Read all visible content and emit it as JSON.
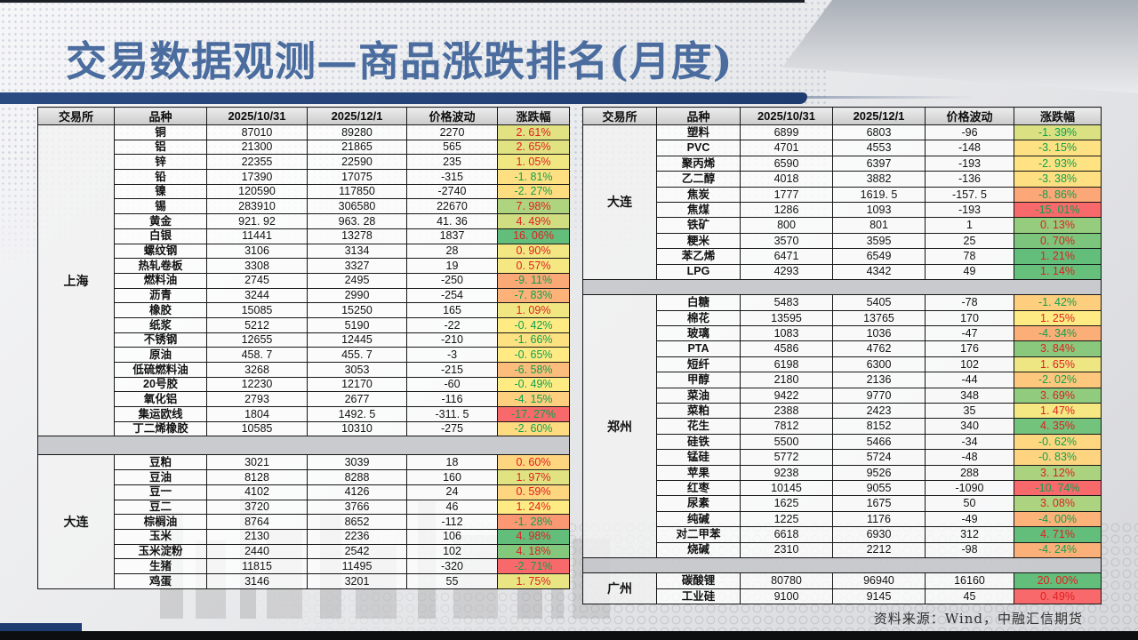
{
  "slide": {
    "title": "交易数据观测—商品涨跌排名(月度)",
    "source_note": "资料来源：Wind，中融汇信期货",
    "colors": {
      "title_blue": "#4a6c9e",
      "bar_navy": "#1f3c70",
      "up_red": "#e01f1f",
      "down_green": "#0ca14e",
      "scale_min_red": "#F8696B",
      "scale_mid_yellow": "#FFEB84",
      "scale_max_green": "#63BE7B"
    }
  },
  "row_fields": [
    "variety",
    "price_2025_10_31",
    "price_2025_12_1",
    "price_change",
    "pct_change",
    "pct_bg_color",
    "direction"
  ],
  "tables": [
    {
      "id": "left",
      "headers": [
        "交易所",
        "品种",
        "2025/10/31",
        "2025/12/1",
        "价格波动",
        "涨跌幅"
      ],
      "sections": [
        {
          "exchange": "上海",
          "rows": [
            [
              "铜",
              "87010",
              "89280",
              "2270",
              "2. 61%",
              "#E2E282",
              "up"
            ],
            [
              "铝",
              "21300",
              "21865",
              "565",
              "2. 65%",
              "#E1E282",
              "up"
            ],
            [
              "锌",
              "22355",
              "22590",
              "235",
              "1. 05%",
              "#F0E783",
              "up"
            ],
            [
              "铅",
              "17390",
              "17075",
              "-315",
              "-1. 81%",
              "#FEE082",
              "down"
            ],
            [
              "镍",
              "120590",
              "117850",
              "-2740",
              "-2. 27%",
              "#FEDD81",
              "down"
            ],
            [
              "锡",
              "283910",
              "306580",
              "22670",
              "7. 98%",
              "#AFD47F",
              "up"
            ],
            [
              "黄金",
              "921. 92",
              "963. 28",
              "41. 36",
              "4. 49%",
              "#D0DD81",
              "up"
            ],
            [
              "白银",
              "11441",
              "13278",
              "1837",
              "16. 06%",
              "#63BE7B",
              "up"
            ],
            [
              "螺纹钢",
              "3106",
              "3134",
              "28",
              "0. 90%",
              "#F2E783",
              "up"
            ],
            [
              "热轧卷板",
              "3308",
              "3327",
              "19",
              "0. 57%",
              "#F5E883",
              "up"
            ],
            [
              "燃料油",
              "2745",
              "2495",
              "-250",
              "-9. 11%",
              "#FBA877",
              "down"
            ],
            [
              "沥青",
              "3244",
              "2990",
              "-254",
              "-7. 83%",
              "#FCB279",
              "down"
            ],
            [
              "橡胶",
              "15085",
              "15250",
              "165",
              "1. 09%",
              "#F0E783",
              "up"
            ],
            [
              "纸浆",
              "5212",
              "5190",
              "-22",
              "-0. 42%",
              "#FFEB84",
              "down"
            ],
            [
              "不锈钢",
              "12655",
              "12445",
              "-210",
              "-1. 66%",
              "#FEE282",
              "down"
            ],
            [
              "原油",
              "458. 7",
              "455. 7",
              "-3",
              "-0. 65%",
              "#FFEA84",
              "down"
            ],
            [
              "低硫燃料油",
              "3268",
              "3053",
              "-215",
              "-6. 58%",
              "#FCBC7B",
              "down"
            ],
            [
              "20号胶",
              "12230",
              "12170",
              "-60",
              "-0. 49%",
              "#FFEB84",
              "down"
            ],
            [
              "氧化铝",
              "2793",
              "2677",
              "-116",
              "-4. 15%",
              "#FDCF7F",
              "down"
            ],
            [
              "集运欧线",
              "1804",
              "1492. 5",
              "-311. 5",
              "-17. 27%",
              "#F8696B",
              "down"
            ],
            [
              "丁二烯橡胶",
              "10585",
              "10310",
              "-275",
              "-2. 60%",
              "#FEDB81",
              "down"
            ]
          ]
        },
        {
          "exchange": "大连",
          "rows": [
            [
              "豆粕",
              "3021",
              "3039",
              "18",
              "0. 60%",
              "#FED680",
              "up"
            ],
            [
              "豆油",
              "8128",
              "8288",
              "160",
              "1. 97%",
              "#E1E282",
              "up"
            ],
            [
              "豆一",
              "4102",
              "4126",
              "24",
              "0. 59%",
              "#FED680",
              "up"
            ],
            [
              "豆二",
              "3720",
              "3766",
              "46",
              "1. 24%",
              "#FFEB84",
              "up"
            ],
            [
              "棕榈油",
              "8764",
              "8652",
              "-112",
              "-1. 28%",
              "#FB9874",
              "down"
            ],
            [
              "玉米",
              "2130",
              "2236",
              "106",
              "4. 98%",
              "#63BE7B",
              "up"
            ],
            [
              "玉米淀粉",
              "2440",
              "2542",
              "102",
              "4. 18%",
              "#84C87D",
              "up"
            ],
            [
              "生猪",
              "11815",
              "11495",
              "-320",
              "-2. 71%",
              "#F8696B",
              "down"
            ],
            [
              "鸡蛋",
              "3146",
              "3201",
              "55",
              "1. 75%",
              "#EAE583",
              "up"
            ]
          ]
        }
      ]
    },
    {
      "id": "right",
      "headers": [
        "交易所",
        "品种",
        "2025/10/31",
        "2025/12/1",
        "价格波动",
        "涨跌幅"
      ],
      "sections": [
        {
          "exchange": "大连",
          "rows": [
            [
              "塑料",
              "6899",
              "6803",
              "-96",
              "-1. 39%",
              "#DBE182",
              "down"
            ],
            [
              "PVC",
              "4701",
              "4553",
              "-148",
              "-3. 15%",
              "#FEE182",
              "down"
            ],
            [
              "聚丙烯",
              "6590",
              "6397",
              "-193",
              "-2. 93%",
              "#FFE383",
              "down"
            ],
            [
              "乙二醇",
              "4018",
              "3882",
              "-136",
              "-3. 38%",
              "#FEDF82",
              "down"
            ],
            [
              "焦炭",
              "1777",
              "1619. 5",
              "-157. 5",
              "-8. 86%",
              "#FBA777",
              "down"
            ],
            [
              "焦煤",
              "1286",
              "1093",
              "-193",
              "-15. 01%",
              "#F8696B",
              "down"
            ],
            [
              "铁矿",
              "800",
              "801",
              "1",
              "0. 13%",
              "#95CC7E",
              "up"
            ],
            [
              "粳米",
              "3570",
              "3595",
              "25",
              "0. 70%",
              "#7BC57C",
              "up"
            ],
            [
              "苯乙烯",
              "6471",
              "6549",
              "78",
              "1. 21%",
              "#63BE7B",
              "up"
            ],
            [
              "LPG",
              "4293",
              "4342",
              "49",
              "1. 14%",
              "#66BF7B",
              "up"
            ]
          ]
        },
        {
          "exchange": "郑州",
          "rows": [
            [
              "白糖",
              "5483",
              "5405",
              "-78",
              "-1. 42%",
              "#FDCE7E",
              "down"
            ],
            [
              "棉花",
              "13595",
              "13765",
              "170",
              "1. 25%",
              "#FFEB84",
              "up"
            ],
            [
              "玻璃",
              "1083",
              "1036",
              "-47",
              "-4. 34%",
              "#FCAE78",
              "down"
            ],
            [
              "PTA",
              "4586",
              "4762",
              "176",
              "3. 84%",
              "#8AC97D",
              "up"
            ],
            [
              "短纤",
              "6198",
              "6300",
              "102",
              "1. 65%",
              "#EDE683",
              "up"
            ],
            [
              "甲醇",
              "2180",
              "2136",
              "-44",
              "-2. 02%",
              "#FDC87D",
              "down"
            ],
            [
              "菜油",
              "9422",
              "9770",
              "348",
              "3. 69%",
              "#91CB7E",
              "up"
            ],
            [
              "菜粕",
              "2388",
              "2423",
              "35",
              "1. 47%",
              "#F5E883",
              "up"
            ],
            [
              "花生",
              "7812",
              "8152",
              "340",
              "4. 35%",
              "#73C37C",
              "up"
            ],
            [
              "硅铁",
              "5500",
              "5466",
              "-34",
              "-0. 62%",
              "#FED780",
              "down"
            ],
            [
              "锰硅",
              "5772",
              "5724",
              "-48",
              "-0. 83%",
              "#FED480",
              "down"
            ],
            [
              "苹果",
              "9238",
              "9526",
              "288",
              "3. 12%",
              "#ABD37F",
              "up"
            ],
            [
              "红枣",
              "10145",
              "9055",
              "-1090",
              "-10. 74%",
              "#F8696B",
              "down"
            ],
            [
              "尿素",
              "1625",
              "1675",
              "50",
              "3. 08%",
              "#ACD37F",
              "up"
            ],
            [
              "纯碱",
              "1225",
              "1176",
              "-49",
              "-4. 00%",
              "#FCB279",
              "down"
            ],
            [
              "对二甲苯",
              "6618",
              "6930",
              "312",
              "4. 71%",
              "#63BE7B",
              "up"
            ],
            [
              "烧碱",
              "2310",
              "2212",
              "-98",
              "-4. 24%",
              "#FCB079",
              "down"
            ]
          ]
        },
        {
          "exchange": "广州",
          "rows": [
            [
              "碳酸锂",
              "80780",
              "96940",
              "16160",
              "20. 00%",
              "#63BE7B",
              "up"
            ],
            [
              "工业硅",
              "9100",
              "9145",
              "45",
              "0. 49%",
              "#F8696B",
              "up"
            ]
          ]
        }
      ]
    }
  ]
}
